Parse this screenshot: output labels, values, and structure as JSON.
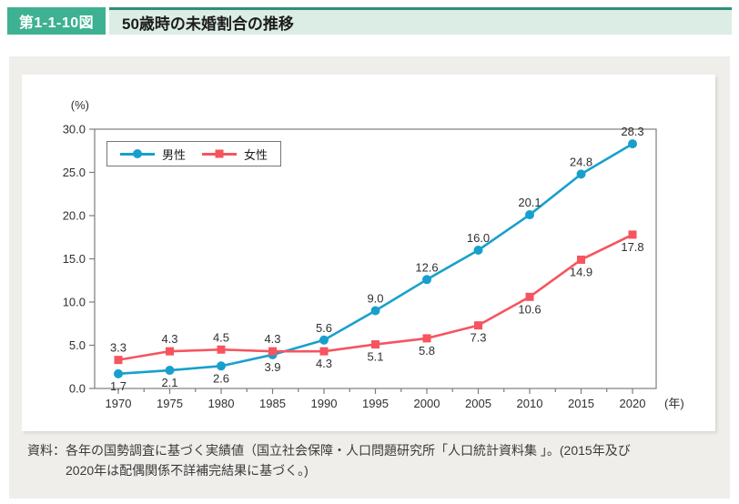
{
  "header": {
    "figure_number": "第1-1-10図",
    "title": "50歳時の未婚割合の推移"
  },
  "note": {
    "prefix": "資料：",
    "line1": "各年の国勢調査に基づく実績値（国立社会保障・人口問題研究所「人口統計資料集 」。(2015年及び",
    "line2": "2020年は配偶関係不詳補完結果に基づく。)"
  },
  "colors": {
    "badge_green": "#3eb192",
    "header_bar": "#dcede5",
    "header_topline": "#2e8f77",
    "panel_gray": "#efeeeb",
    "male_blue": "#18a0cd",
    "female_red": "#f6545f",
    "axis_gray": "#7d7d7d",
    "label_text": "#2f2f2f"
  },
  "chart_data": {
    "type": "line",
    "categories": [
      1970,
      1975,
      1980,
      1985,
      1990,
      1995,
      2000,
      2005,
      2010,
      2015,
      2020
    ],
    "series": [
      {
        "name": "男性",
        "color": "#18a0cd",
        "marker": "circle",
        "values": [
          1.7,
          2.1,
          2.6,
          3.9,
          5.6,
          9.0,
          12.6,
          16.0,
          20.1,
          24.8,
          28.3
        ],
        "label_side": [
          "below",
          "below",
          "below",
          "below",
          "above",
          "above",
          "above",
          "above",
          "above",
          "above",
          "above"
        ]
      },
      {
        "name": "女性",
        "color": "#f6545f",
        "marker": "square",
        "values": [
          3.3,
          4.3,
          4.5,
          4.3,
          4.3,
          5.1,
          5.8,
          7.3,
          10.6,
          14.9,
          17.8
        ],
        "label_side": [
          "above",
          "above",
          "above",
          "above",
          "below",
          "below",
          "below",
          "below",
          "below",
          "below",
          "below"
        ]
      }
    ],
    "ylim": [
      0,
      30
    ],
    "ytick_step": 5,
    "unit_label": "(%)",
    "x_unit_label": "(年)",
    "grid": false,
    "legend_position": "top-left-inside"
  }
}
